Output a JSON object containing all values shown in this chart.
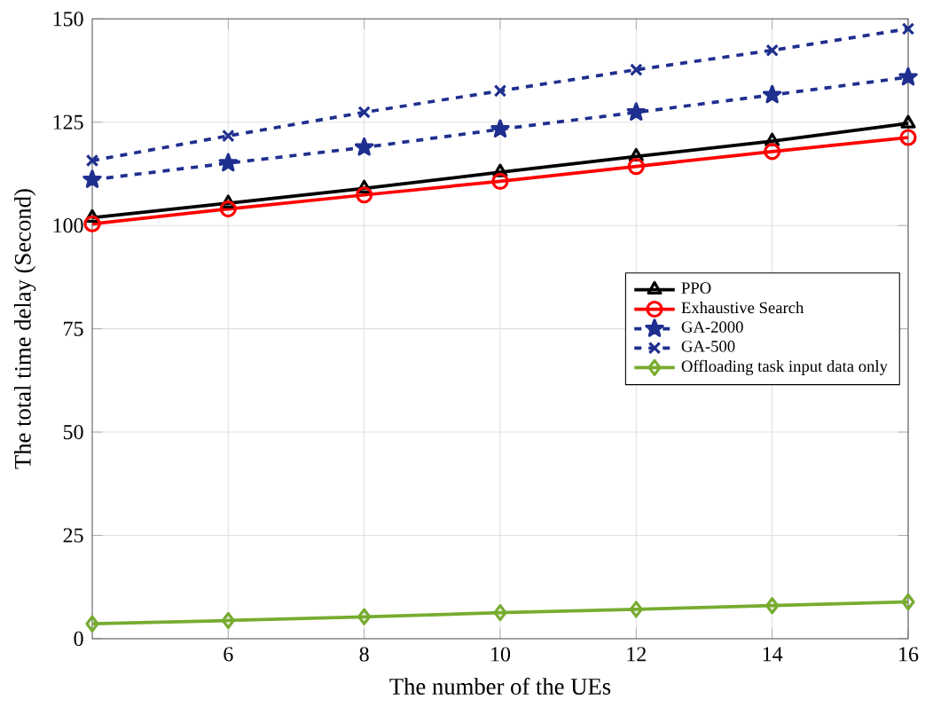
{
  "chart_data": {
    "type": "line",
    "xlabel": "The number of the UEs",
    "ylabel": "The total time delay (Second)",
    "x": [
      4,
      6,
      8,
      10,
      12,
      14,
      16
    ],
    "series": [
      {
        "name": "PPO",
        "color": "#000000",
        "marker": "triangle",
        "line_style": "solid",
        "values": [
          101.9,
          105.4,
          109.0,
          112.9,
          116.7,
          120.4,
          124.7
        ]
      },
      {
        "name": "Exhaustive Search",
        "color": "#ff0000",
        "marker": "circle",
        "line_style": "solid",
        "values": [
          100.4,
          104.0,
          107.4,
          110.7,
          114.3,
          117.9,
          121.3
        ]
      },
      {
        "name": "GA-2000",
        "color": "#1f2f8f",
        "marker": "star",
        "line_style": "dashed",
        "values": [
          111.1,
          115.1,
          118.9,
          123.3,
          127.4,
          131.6,
          135.9
        ]
      },
      {
        "name": "GA-500",
        "color": "#1f2f8f",
        "marker": "cross",
        "line_style": "dashed",
        "values": [
          115.7,
          121.7,
          127.4,
          132.6,
          137.7,
          142.4,
          147.6
        ]
      },
      {
        "name": "Offloading task input data only",
        "color": "#77ac30",
        "marker": "diamond",
        "line_style": "solid",
        "values": [
          3.6,
          4.4,
          5.3,
          6.3,
          7.1,
          8.0,
          8.9
        ]
      }
    ],
    "xlim": [
      4,
      16
    ],
    "ylim": [
      0,
      150
    ],
    "xticks": [
      6,
      8,
      10,
      12,
      14,
      16
    ],
    "yticks": [
      0,
      25,
      50,
      75,
      100,
      125,
      150
    ],
    "grid": true,
    "legend": "right"
  }
}
